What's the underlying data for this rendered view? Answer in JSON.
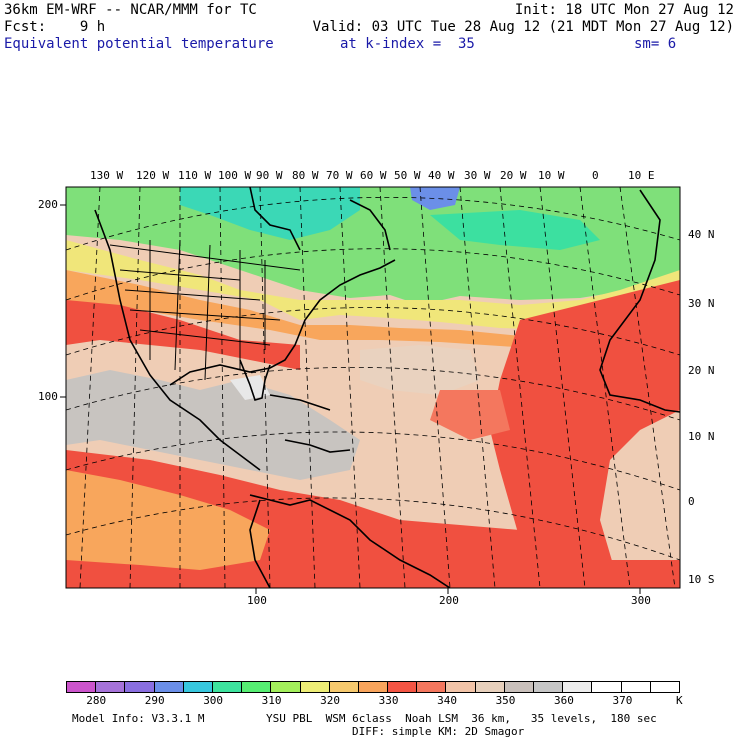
{
  "header": {
    "line1_left": "36km EM-WRF -- NCAR/MMM for TC",
    "line1_right": "Init: 18 UTC Mon 27 Aug 12",
    "line2_left": "Fcst:    9 h",
    "line2_right": "Valid: 03 UTC Tue 28 Aug 12 (21 MDT Mon 27 Aug 12)",
    "field_name": "Equivalent potential temperature",
    "level": "at k-index =  35",
    "smoothing": "sm= 6"
  },
  "map": {
    "top_lon_labels": [
      "130 W",
      "120 W",
      "110 W",
      "100 W",
      "90 W",
      "80 W",
      "70 W",
      "60 W",
      "50 W",
      "40 W",
      "30 W",
      "20 W",
      "10 W",
      "0",
      "10 E"
    ],
    "right_lat_labels": [
      "40 N",
      "30 N",
      "20 N",
      "10 N",
      "0",
      "10 S"
    ],
    "left_grid_labels": [
      "200",
      "100"
    ],
    "bottom_grid_labels": [
      "100",
      "200",
      "300"
    ]
  },
  "colorbar": {
    "colors": [
      "#cc55cc",
      "#a673d9",
      "#8a6fe0",
      "#6b8fe8",
      "#38c7de",
      "#3de39e",
      "#56ee73",
      "#a3ef5c",
      "#eeee77",
      "#f6c96e",
      "#f8a45c",
      "#f45544",
      "#f4775e",
      "#f2c4a8",
      "#e7d0bc",
      "#c9c0bb",
      "#c6c6c6",
      "#ededed",
      "#ffffff",
      "#ffffff",
      "#ffffff"
    ],
    "tick_labels": [
      "280",
      "290",
      "300",
      "310",
      "320",
      "330",
      "340",
      "350",
      "360",
      "370"
    ],
    "unit": "K"
  },
  "footer": {
    "model_info": "Model Info: V3.3.1 M",
    "physics_line1": "YSU PBL  WSM 6class  Noah LSM  36 km,   35 levels,  180 sec",
    "physics_line2": "DIFF: simple KM: 2D Smagor"
  }
}
